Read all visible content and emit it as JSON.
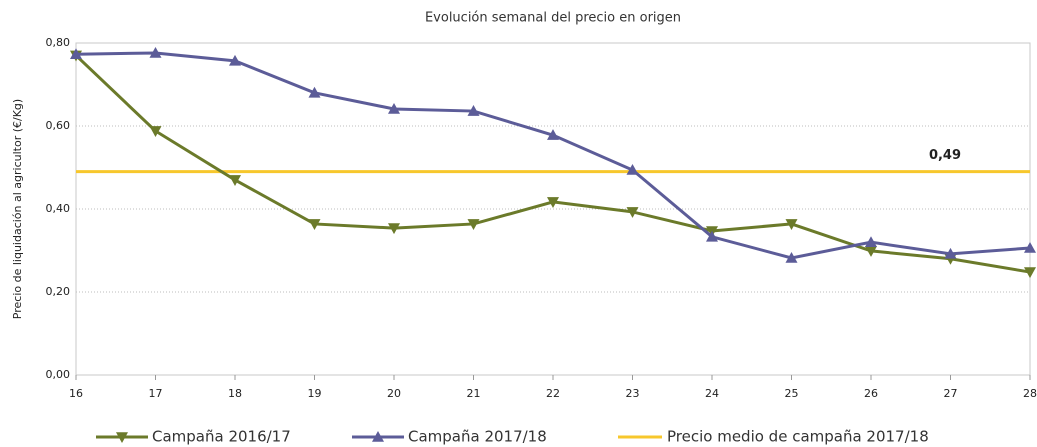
{
  "chart_data": {
    "type": "line",
    "title": "Evolución semanal del precio en origen",
    "y_label": "Precio de liquidación al agricultor (€/Kg)",
    "x": [
      16,
      17,
      18,
      19,
      20,
      21,
      22,
      23,
      24,
      25,
      26,
      27,
      28
    ],
    "xlim": [
      16,
      28
    ],
    "xticks": [
      16,
      17,
      18,
      19,
      20,
      21,
      22,
      23,
      24,
      25,
      26,
      27,
      28
    ],
    "ylim": [
      0,
      0.8
    ],
    "yticks": [
      {
        "value": 0,
        "label": "0,00"
      },
      {
        "value": 0.2,
        "label": "0,20"
      },
      {
        "value": 0.4,
        "label": "0,40"
      },
      {
        "value": 0.6,
        "label": "0,60"
      },
      {
        "value": 0.8,
        "label": "0,80"
      }
    ],
    "grid": true,
    "legend": "bottom",
    "series": [
      {
        "name": "Campaña 2016/17",
        "color": "#6b7a2a",
        "marker": "triangle-down",
        "values": [
          0.77,
          0.588,
          0.47,
          0.364,
          0.354,
          0.364,
          0.417,
          0.393,
          0.347,
          0.364,
          0.299,
          0.28,
          0.248
        ]
      },
      {
        "name": "Campaña 2017/18",
        "color": "#5c5c98",
        "marker": "triangle-up",
        "values": [
          0.773,
          0.776,
          0.757,
          0.68,
          0.641,
          0.636,
          0.578,
          0.494,
          0.333,
          0.282,
          0.32,
          0.292,
          0.306
        ]
      }
    ],
    "hlines": [
      {
        "name": "Precio medio de campaña 2017/18",
        "color": "#f7c72c",
        "value": 0.49,
        "value_label": "0,49"
      }
    ]
  }
}
